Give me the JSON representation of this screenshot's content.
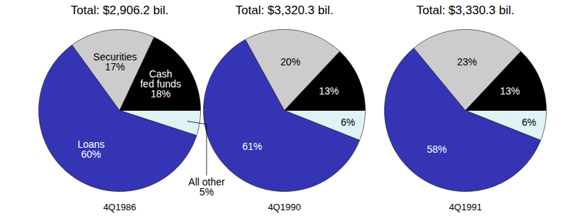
{
  "chart_data": [
    {
      "type": "pie",
      "title": "Total: $2,906.2 bil.",
      "caption": "4Q1986",
      "categories": [
        "All other",
        "Loans",
        "Securities",
        "Cash\nfed funds"
      ],
      "values": [
        5,
        60,
        17,
        18
      ],
      "value_labels": [
        "5%",
        "60%",
        "17%",
        "18%"
      ],
      "colors": [
        "#dff3f6",
        "#3434b4",
        "#cccccc",
        "#000000"
      ],
      "data_labels": true
    },
    {
      "type": "pie",
      "title": "Total: $3,320.3 bil.",
      "caption": "4Q1990",
      "categories": [
        null,
        null,
        null,
        null
      ],
      "values": [
        6,
        61,
        20,
        13
      ],
      "value_labels": [
        "6%",
        "61%",
        "20%",
        "13%"
      ],
      "colors": [
        "#dff3f6",
        "#3434b4",
        "#cccccc",
        "#000000"
      ],
      "data_labels": true
    },
    {
      "type": "pie",
      "title": "Total: $3,330.3 bil.",
      "caption": "4Q1991",
      "categories": [
        null,
        null,
        null,
        null
      ],
      "values": [
        6,
        58,
        23,
        13
      ],
      "value_labels": [
        "6%",
        "58%",
        "23%",
        "13%"
      ],
      "colors": [
        "#dff3f6",
        "#3434b4",
        "#cccccc",
        "#000000"
      ],
      "data_labels": true
    }
  ]
}
